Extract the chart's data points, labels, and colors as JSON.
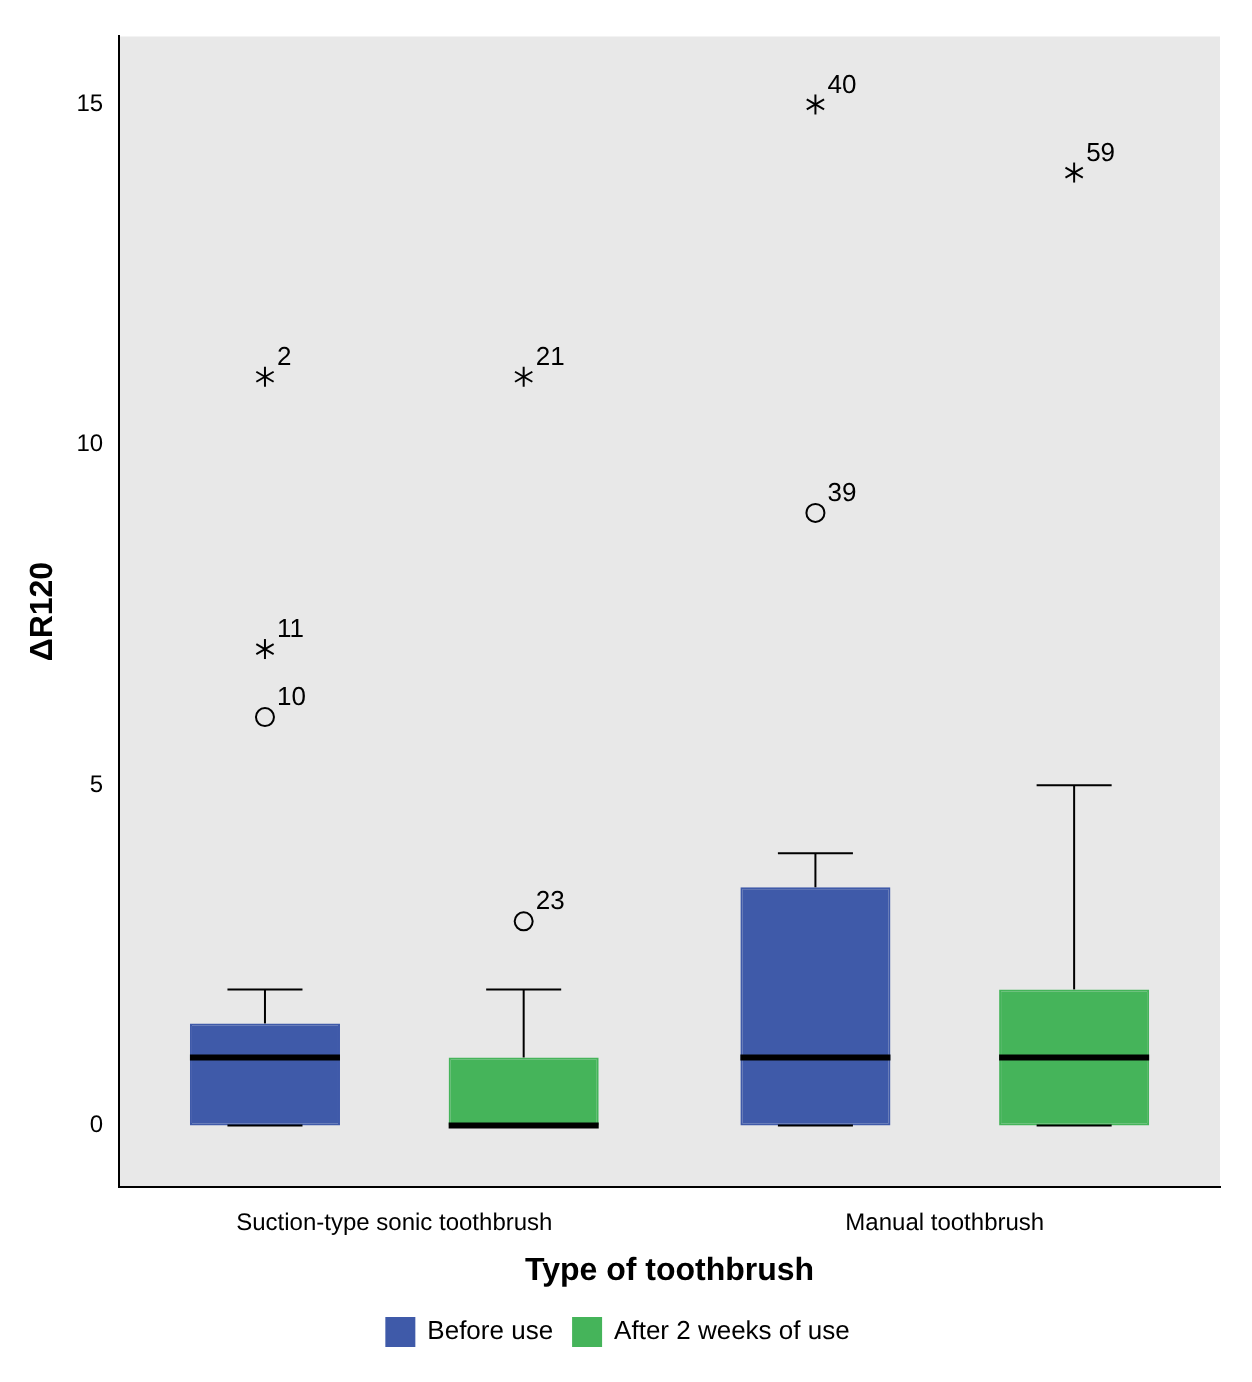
{
  "chart_data": {
    "type": "box",
    "xlabel": "Type of toothbrush",
    "ylabel": "ΔR120",
    "categories": [
      "Suction-type sonic toothbrush",
      "Manual toothbrush"
    ],
    "series": [
      {
        "name": "Before use",
        "color": "#3f5aa9",
        "boxes": [
          {
            "low": 0,
            "q1": 0,
            "median": 1,
            "q3": 1.5,
            "high": 2,
            "outliers": [
              6,
              7,
              11
            ]
          },
          {
            "low": 0,
            "q1": 0,
            "median": 1,
            "q3": 3.5,
            "high": 4,
            "outliers": [
              9,
              15
            ]
          }
        ]
      },
      {
        "name": "After 2 weeks of use",
        "color": "#45b45a",
        "boxes": [
          {
            "low": 0,
            "q1": 0,
            "median": 0,
            "q3": 1,
            "high": 2,
            "outliers": [
              3,
              11
            ]
          },
          {
            "low": 0,
            "q1": 0,
            "median": 1,
            "q3": 2,
            "high": 5,
            "outliers": [
              14
            ]
          }
        ]
      }
    ],
    "ylim": [
      -0.9,
      16
    ],
    "yticks": [
      0,
      5,
      10,
      15
    ],
    "grid": false,
    "legend": "bottom",
    "annotations": [
      "10",
      "11",
      "2",
      "23",
      "21",
      "39",
      "40",
      "59"
    ]
  }
}
